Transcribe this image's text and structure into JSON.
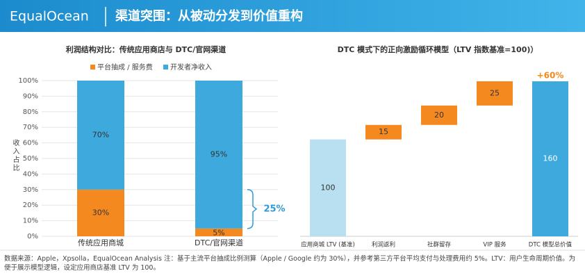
{
  "header": {
    "logo": "EqualOcean",
    "title": "渠道突围：从被动分发到价值重构"
  },
  "chart_data": [
    {
      "type": "bar",
      "stacked": true,
      "title": "利润结构对比：传统应用商店与 DTC/官网渠道",
      "y_label": "收入占比",
      "categories": [
        "传统应用商城",
        "DTC/官网渠道"
      ],
      "series": [
        {
          "name": "平台抽成 / 服务费",
          "color": "#f4891f",
          "values": [
            30,
            5
          ],
          "value_labels": [
            "30%",
            "5%"
          ]
        },
        {
          "name": "开发者净收入",
          "color": "#3ea9dc",
          "values": [
            70,
            95
          ],
          "value_labels": [
            "70%",
            "95%"
          ]
        }
      ],
      "ylim": [
        0,
        100
      ],
      "yticks": [
        {
          "value": 0,
          "label": "0%"
        },
        {
          "value": 10,
          "label": "10%"
        },
        {
          "value": 20,
          "label": "20%"
        },
        {
          "value": 30,
          "label": "30%"
        },
        {
          "value": 40,
          "label": "40%"
        },
        {
          "value": 50,
          "label": "50%"
        },
        {
          "value": 60,
          "label": "60%"
        },
        {
          "value": 70,
          "label": "70%"
        },
        {
          "value": 80,
          "label": "80%"
        },
        {
          "value": 90,
          "label": "90%"
        },
        {
          "value": 100,
          "label": "100%"
        }
      ],
      "grid": true,
      "annotation": "25%"
    },
    {
      "type": "waterfall",
      "title": "DTC 模式下的正向激励循环模型（LTV 指数基准=100)）",
      "categories": [
        "应用商城 LTV (基准)",
        "利润返利",
        "社群留存",
        "VIP 服务",
        "DTC 模型总价值"
      ],
      "values": [
        100,
        15,
        20,
        25,
        160
      ],
      "colors": [
        "#b8e0f0",
        "#f4891f",
        "#f4891f",
        "#f4891f",
        "#3ea9dc"
      ],
      "annotation": "+60%"
    }
  ],
  "footer": {
    "note": "数据来源：Apple，Xpsolla，EqualOcean Analysis 注：基于主流平台抽成比例测算（Apple / Google 约为 30%），并参考第三方平台平均支付与处理费用约 5%。LTV：用户生命周期价值。为便于展示模型逻辑，设定应用商店基准 LTV 为 100。"
  }
}
